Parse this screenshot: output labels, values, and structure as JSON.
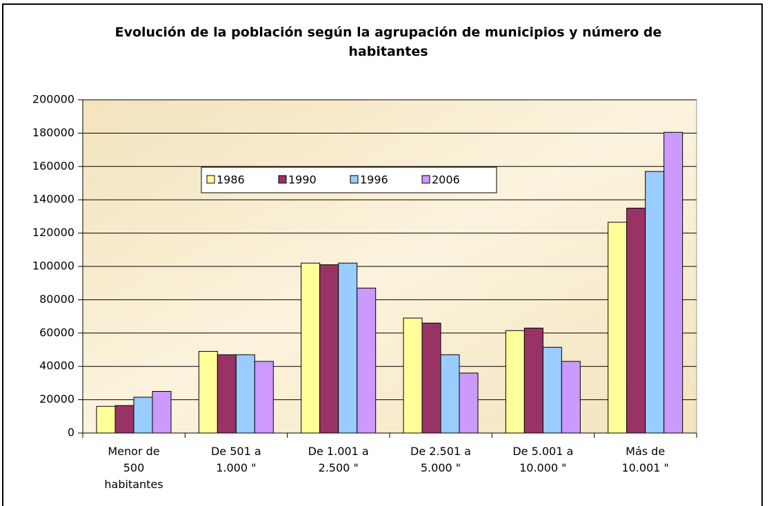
{
  "chart_data": {
    "type": "bar",
    "title": "Evolución de la población según la agrupación de municipios y número de habitantes",
    "categories": [
      "Menor de\n500\nhabitantes",
      "De 501 a\n1.000 \"",
      "De 1.001 a\n2.500 \"",
      "De 2.501 a\n5.000 \"",
      "De 5.001 a\n10.000 \"",
      "Más de\n10.001 \""
    ],
    "series": [
      {
        "name": "1986",
        "color": "#ffff99",
        "values": [
          16000,
          49000,
          102000,
          69000,
          61500,
          126500
        ]
      },
      {
        "name": "1990",
        "color": "#993366",
        "values": [
          16500,
          47000,
          101000,
          66000,
          63000,
          135000
        ]
      },
      {
        "name": "1996",
        "color": "#99ccff",
        "values": [
          21500,
          47000,
          102000,
          47000,
          51500,
          157000
        ]
      },
      {
        "name": "2006",
        "color": "#cc99ff",
        "values": [
          25000,
          43000,
          87000,
          36000,
          43000,
          180500
        ]
      }
    ],
    "ylim": [
      0,
      200000
    ],
    "yticks": [
      0,
      20000,
      40000,
      60000,
      80000,
      100000,
      120000,
      140000,
      160000,
      180000,
      200000
    ],
    "grid": true,
    "legend": "top"
  }
}
